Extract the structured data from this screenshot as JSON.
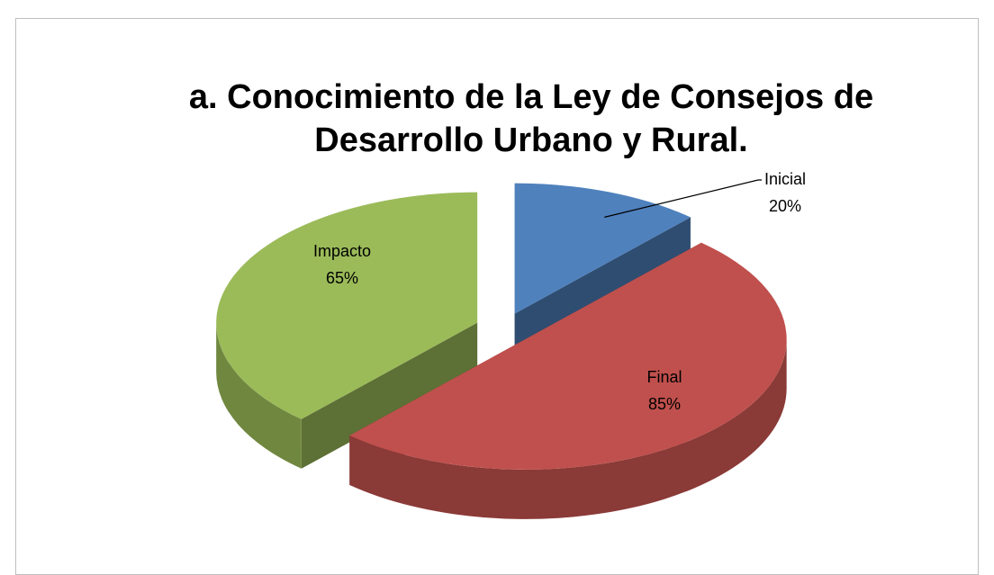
{
  "chart_data": {
    "type": "pie3d",
    "title": "a. Conocimiento de la Ley de Consejos de Desarrollo Urbano y Rural.",
    "categories": [
      "Inicial",
      "Final",
      "Impacto"
    ],
    "values": [
      20,
      85,
      65
    ],
    "value_labels": [
      "20%",
      "85%",
      "65%"
    ],
    "colors": [
      "#4f81bd",
      "#c0504d",
      "#9bbb59"
    ]
  }
}
